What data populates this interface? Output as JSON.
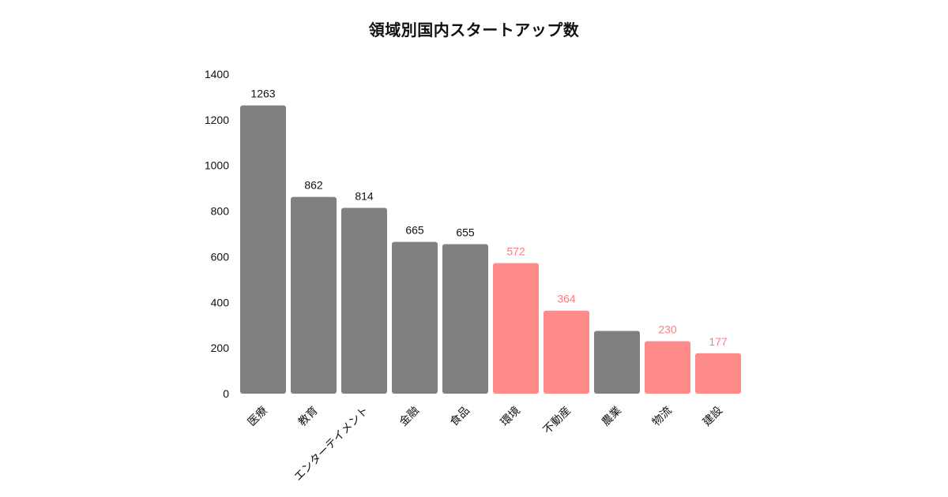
{
  "chart_data": {
    "type": "bar",
    "title": "領域別国内スタートアップ数",
    "xlabel": "",
    "ylabel": "",
    "ylim": [
      0,
      1400
    ],
    "yticks": [
      0,
      200,
      400,
      600,
      800,
      1000,
      1200,
      1400
    ],
    "grid": false,
    "legend": "none",
    "categories": [
      "医療",
      "教育",
      "エンターテイメント",
      "金融",
      "食品",
      "環境",
      "不動産",
      "農業",
      "物流",
      "建設"
    ],
    "values": [
      1263,
      862,
      814,
      665,
      655,
      572,
      364,
      275,
      230,
      177
    ],
    "data_labels": [
      "1263",
      "862",
      "814",
      "665",
      "655",
      "572",
      "364",
      "",
      "230",
      "177"
    ],
    "highlighted": [
      false,
      false,
      false,
      false,
      false,
      true,
      true,
      false,
      true,
      true
    ],
    "colors": {
      "default": "#808080",
      "highlight": "#ff8a8a",
      "default_label": "#111111",
      "highlight_label": "#ff7b7b"
    }
  }
}
